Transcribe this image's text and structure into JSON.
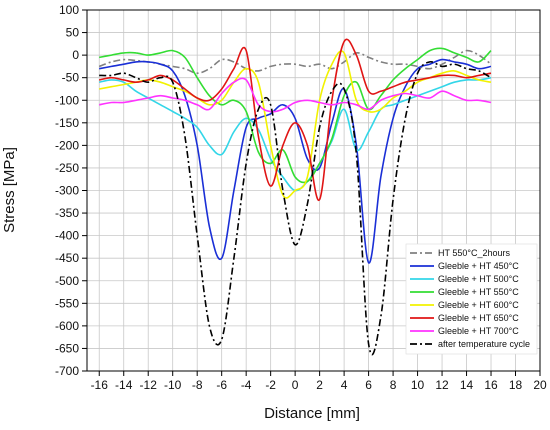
{
  "chart_data": {
    "type": "line",
    "title": "",
    "xlabel": "Distance [mm]",
    "ylabel": "Stress [MPa]",
    "xlim": [
      -17,
      20
    ],
    "ylim": [
      -700,
      100
    ],
    "x_ticks": [
      -16,
      -14,
      -12,
      -10,
      -8,
      -6,
      -4,
      -2,
      0,
      2,
      4,
      6,
      8,
      10,
      12,
      14,
      16,
      18,
      20
    ],
    "y_ticks": [
      100,
      50,
      0,
      -50,
      -100,
      -150,
      -200,
      -250,
      -300,
      -350,
      -400,
      -450,
      -500,
      -550,
      -600,
      -650,
      -700
    ],
    "grid": true,
    "legend_position": "bottom-right",
    "series": [
      {
        "name": "HT 550°C_2hours",
        "color": "#808080",
        "dash": "dashdot",
        "x": [
          -16,
          -15,
          -14,
          -13,
          -12,
          -11,
          -10,
          -9,
          -8,
          -7,
          -6,
          -5,
          -4,
          -3,
          -2,
          -1,
          0,
          1,
          2,
          3,
          4,
          5,
          6,
          7,
          8,
          9,
          10,
          11,
          12,
          13,
          14,
          15,
          16
        ],
        "y": [
          -25,
          -15,
          -10,
          -12,
          -15,
          -20,
          -25,
          -30,
          -40,
          -30,
          -10,
          -15,
          -30,
          -35,
          -25,
          -20,
          -20,
          -25,
          -20,
          -30,
          -15,
          5,
          -5,
          -15,
          -20,
          -20,
          -25,
          -30,
          -20,
          -5,
          10,
          0,
          -20
        ]
      },
      {
        "name": "Gleeble + HT 450°C",
        "color": "#1a2fd6",
        "dash": "solid",
        "x": [
          -16,
          -15,
          -14,
          -13,
          -12,
          -11,
          -10,
          -9,
          -8,
          -7,
          -6,
          -5,
          -4,
          -3,
          -2,
          -1,
          0,
          1,
          2,
          3,
          4,
          5,
          6,
          7,
          8,
          9,
          10,
          11,
          12,
          13,
          14,
          15,
          16
        ],
        "y": [
          -30,
          -25,
          -20,
          -15,
          -15,
          -20,
          -35,
          -90,
          -200,
          -380,
          -450,
          -300,
          -160,
          -140,
          -130,
          -110,
          -140,
          -230,
          -250,
          -150,
          -75,
          -200,
          -460,
          -270,
          -140,
          -70,
          -30,
          -20,
          -10,
          -15,
          -20,
          -30,
          -25
        ]
      },
      {
        "name": "Gleeble + HT 500°C",
        "color": "#33d6e8",
        "dash": "solid",
        "x": [
          -16,
          -15,
          -14,
          -13,
          -12,
          -11,
          -10,
          -9,
          -8,
          -7,
          -6,
          -5,
          -4,
          -3,
          -2,
          -1,
          0,
          1,
          2,
          3,
          4,
          5,
          6,
          7,
          8,
          9,
          10,
          11,
          12,
          13,
          14,
          15,
          16
        ],
        "y": [
          -60,
          -55,
          -60,
          -80,
          -95,
          -110,
          -125,
          -140,
          -160,
          -200,
          -220,
          -170,
          -140,
          -165,
          -230,
          -270,
          -300,
          -280,
          -240,
          -190,
          -120,
          -210,
          -170,
          -120,
          -110,
          -100,
          -90,
          -80,
          -70,
          -60,
          -55,
          -55,
          -50
        ]
      },
      {
        "name": "Gleeble + HT 550°C",
        "color": "#33dd33",
        "dash": "solid",
        "x": [
          -16,
          -15,
          -14,
          -13,
          -12,
          -11,
          -10,
          -9,
          -8,
          -7,
          -6,
          -5,
          -4,
          -3,
          -2,
          -1,
          0,
          1,
          2,
          3,
          4,
          5,
          6,
          7,
          8,
          9,
          10,
          11,
          12,
          13,
          14,
          15,
          16
        ],
        "y": [
          -5,
          0,
          5,
          5,
          0,
          5,
          10,
          -5,
          -50,
          -90,
          -110,
          -100,
          -125,
          -215,
          -240,
          -210,
          -270,
          -280,
          -240,
          -185,
          -90,
          -60,
          -120,
          -90,
          -55,
          -30,
          -10,
          10,
          15,
          5,
          -5,
          -15,
          10
        ]
      },
      {
        "name": "Gleeble + HT 600°C",
        "color": "#f2f200",
        "dash": "solid",
        "x": [
          -16,
          -15,
          -14,
          -13,
          -12,
          -11,
          -10,
          -9,
          -8,
          -7,
          -6,
          -5,
          -4,
          -3,
          -2,
          -1,
          0,
          1,
          2,
          3,
          4,
          5,
          6,
          7,
          8,
          9,
          10,
          11,
          12,
          13,
          14,
          15,
          16
        ],
        "y": [
          -75,
          -70,
          -65,
          -60,
          -55,
          -60,
          -70,
          -80,
          -95,
          -110,
          -100,
          -60,
          -30,
          -60,
          -200,
          -310,
          -300,
          -270,
          -100,
          -20,
          5,
          -100,
          -125,
          -120,
          -95,
          -80,
          -60,
          -50,
          -40,
          -35,
          -45,
          -55,
          -60
        ]
      },
      {
        "name": "Gleeble + HT 650°C",
        "color": "#e01515",
        "dash": "solid",
        "x": [
          -16,
          -15,
          -14,
          -13,
          -12,
          -11,
          -10,
          -9,
          -8,
          -7,
          -6,
          -5,
          -4,
          -3,
          -2,
          -1,
          0,
          1,
          2,
          3,
          4,
          5,
          6,
          7,
          8,
          9,
          10,
          11,
          12,
          13,
          14,
          15,
          16
        ],
        "y": [
          -55,
          -50,
          -55,
          -60,
          -55,
          -45,
          -55,
          -75,
          -95,
          -100,
          -75,
          -30,
          10,
          -180,
          -290,
          -200,
          -150,
          -200,
          -320,
          -100,
          30,
          0,
          -80,
          -80,
          -70,
          -60,
          -55,
          -50,
          -45,
          -45,
          -50,
          -45,
          -40
        ]
      },
      {
        "name": "Gleeble + HT 700°C",
        "color": "#ff33ff",
        "dash": "solid",
        "x": [
          -16,
          -15,
          -14,
          -13,
          -12,
          -11,
          -10,
          -9,
          -8,
          -7,
          -6,
          -5,
          -4,
          -3,
          -2,
          -1,
          0,
          1,
          2,
          3,
          4,
          5,
          6,
          7,
          8,
          9,
          10,
          11,
          12,
          13,
          14,
          15,
          16
        ],
        "y": [
          -110,
          -105,
          -105,
          -100,
          -95,
          -90,
          -95,
          -100,
          -110,
          -120,
          -85,
          -60,
          -55,
          -110,
          -125,
          -120,
          -105,
          -100,
          -105,
          -110,
          -105,
          -110,
          -120,
          -100,
          -90,
          -85,
          -90,
          -95,
          -80,
          -90,
          -100,
          -100,
          -105
        ]
      },
      {
        "name": "after temperature cycle",
        "color": "#000000",
        "dash": "dashdot",
        "x": [
          -16,
          -15,
          -14,
          -13,
          -12,
          -11,
          -10,
          -9,
          -8,
          -7,
          -6,
          -5,
          -4,
          -3,
          -2,
          -1,
          0,
          1,
          2,
          3,
          4,
          5,
          6,
          7,
          8,
          9,
          10,
          11,
          12,
          13,
          14,
          15,
          16
        ],
        "y": [
          -45,
          -45,
          -40,
          -50,
          -60,
          -50,
          -60,
          -180,
          -400,
          -600,
          -630,
          -450,
          -240,
          -120,
          -110,
          -300,
          -420,
          -330,
          -160,
          -80,
          -75,
          -220,
          -640,
          -580,
          -320,
          -140,
          -40,
          -15,
          -25,
          -20,
          -30,
          -35,
          -50
        ]
      }
    ]
  }
}
